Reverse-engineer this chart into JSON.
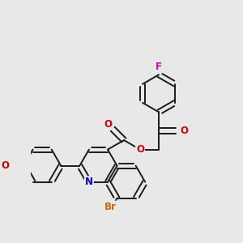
{
  "bg_color": "#e8e8e8",
  "bond_color": "#1a1a1a",
  "atom_colors": {
    "F": "#cc00cc",
    "O": "#cc0000",
    "N": "#0000cc",
    "Br": "#cc6600"
  },
  "font_size": 8.5,
  "line_width": 1.4,
  "figsize": [
    3.0,
    3.0
  ],
  "dpi": 100
}
